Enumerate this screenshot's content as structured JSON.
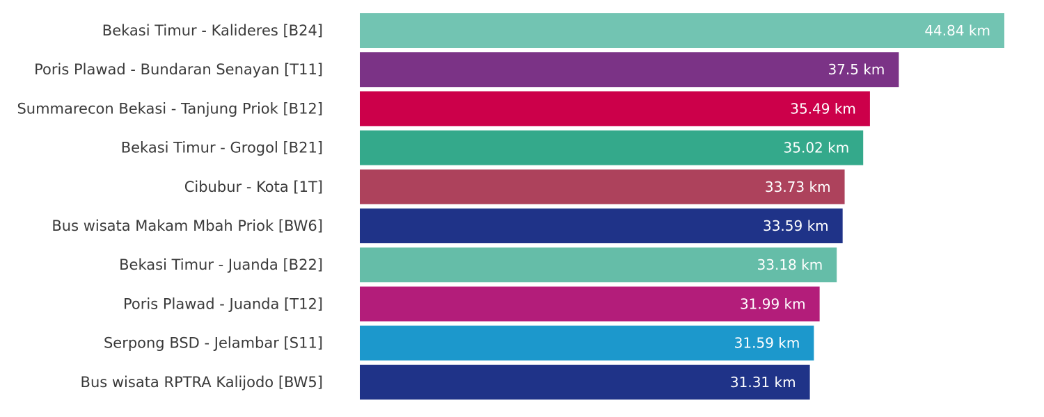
{
  "chart_data": {
    "type": "bar",
    "orientation": "horizontal",
    "title": "",
    "xlabel": "",
    "ylabel": "",
    "unit": "km",
    "xlim": [
      0,
      44.84
    ],
    "grid": false,
    "legend": "none",
    "categories": [
      "Bekasi Timur - Kalideres [B24]",
      "Poris Plawad - Bundaran Senayan [T11]",
      "Summarecon Bekasi - Tanjung Priok [B12]",
      "Bekasi Timur - Grogol [B21]",
      "Cibubur - Kota [1T]",
      "Bus wisata Makam Mbah Priok [BW6]",
      "Bekasi Timur - Juanda [B22]",
      "Poris Plawad - Juanda [T12]",
      "Serpong BSD - Jelambar [S11]",
      "Bus wisata RPTRA Kalijodo [BW5]"
    ],
    "values": [
      44.84,
      37.5,
      35.49,
      35.02,
      33.73,
      33.59,
      33.18,
      31.99,
      31.59,
      31.31
    ],
    "value_labels": [
      "44.84 km",
      "37.5 km",
      "35.49 km",
      "35.02 km",
      "33.73 km",
      "33.59 km",
      "33.18 km",
      "31.99 km",
      "31.59 km",
      "31.31 km"
    ],
    "colors": [
      "#72c4b2",
      "#7b3386",
      "#cc004a",
      "#34a98b",
      "#ad425c",
      "#1f3388",
      "#65bda8",
      "#b31d7a",
      "#1c98cc",
      "#1f3388"
    ]
  }
}
